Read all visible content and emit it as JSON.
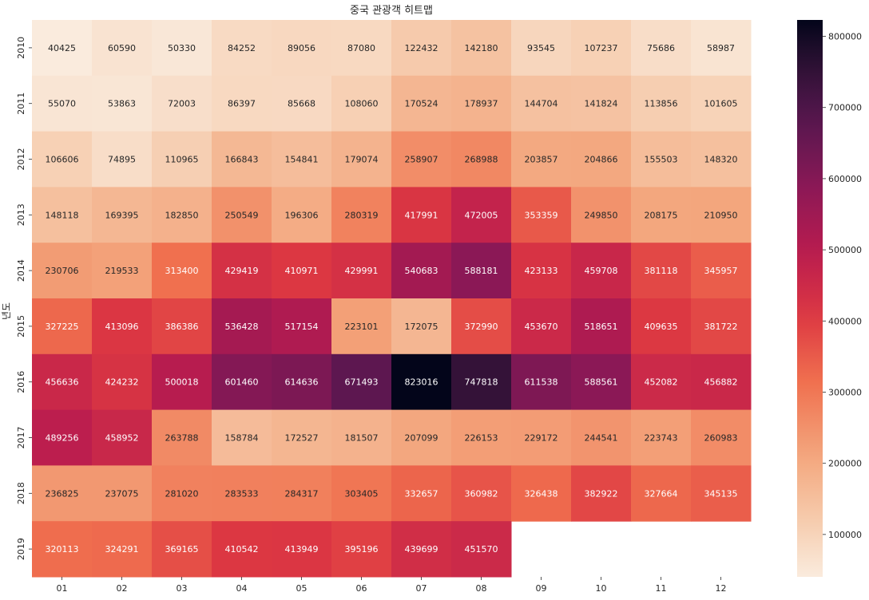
{
  "chart_data": {
    "type": "heatmap",
    "title": "중국 관광객 히트맵",
    "ylabel": "년도",
    "xlabel": "",
    "x": [
      "01",
      "02",
      "03",
      "04",
      "05",
      "06",
      "07",
      "08",
      "09",
      "10",
      "11",
      "12"
    ],
    "y": [
      "2010",
      "2011",
      "2012",
      "2013",
      "2014",
      "2015",
      "2016",
      "2017",
      "2018",
      "2019"
    ],
    "values": [
      [
        40425,
        60590,
        50330,
        84252,
        89056,
        87080,
        122432,
        142180,
        93545,
        107237,
        75686,
        58987
      ],
      [
        55070,
        53863,
        72003,
        86397,
        85668,
        108060,
        170524,
        178937,
        144704,
        141824,
        113856,
        101605
      ],
      [
        106606,
        74895,
        110965,
        166843,
        154841,
        179074,
        258907,
        268988,
        203857,
        204866,
        155503,
        148320
      ],
      [
        148118,
        169395,
        182850,
        250549,
        196306,
        280319,
        417991,
        472005,
        353359,
        249850,
        208175,
        210950
      ],
      [
        230706,
        219533,
        313400,
        429419,
        410971,
        429991,
        540683,
        588181,
        423133,
        459708,
        381118,
        345957
      ],
      [
        327225,
        413096,
        386386,
        536428,
        517154,
        223101,
        172075,
        372990,
        453670,
        518651,
        409635,
        381722
      ],
      [
        456636,
        424232,
        500018,
        601460,
        614636,
        671493,
        823016,
        747818,
        611538,
        588561,
        452082,
        456882
      ],
      [
        489256,
        458952,
        263788,
        158784,
        172527,
        181507,
        207099,
        226153,
        229172,
        244541,
        223743,
        260983
      ],
      [
        236825,
        237075,
        281020,
        283533,
        284317,
        303405,
        332657,
        360982,
        326438,
        382922,
        327664,
        345135
      ],
      [
        320113,
        324291,
        369165,
        410542,
        413949,
        395196,
        439699,
        451570,
        null,
        null,
        null,
        null
      ]
    ],
    "colormap": "rocket_r",
    "vmin": 40425,
    "vmax": 823016,
    "colorbar": {
      "ticks": [
        "100000",
        "200000",
        "300000",
        "400000",
        "500000",
        "600000",
        "700000",
        "800000"
      ],
      "tick_values": [
        100000,
        200000,
        300000,
        400000,
        500000,
        600000,
        700000,
        800000
      ]
    },
    "annotations": true
  }
}
